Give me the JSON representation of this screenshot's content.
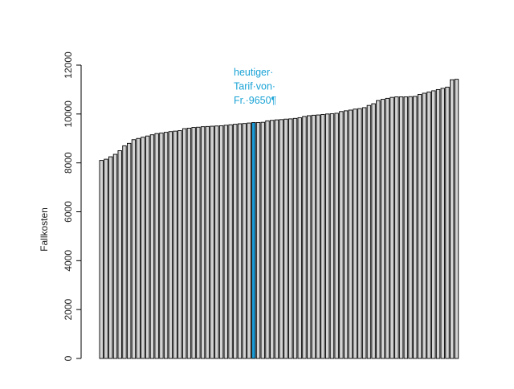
{
  "chart_data": {
    "type": "bar",
    "title": "",
    "xlabel": "",
    "ylabel": "Fallkosten",
    "ylim": [
      0,
      12000
    ],
    "yticks": [
      0,
      2000,
      4000,
      6000,
      8000,
      10000,
      12000
    ],
    "values": [
      8100,
      8150,
      8250,
      8350,
      8500,
      8700,
      8800,
      8950,
      9000,
      9050,
      9100,
      9150,
      9200,
      9220,
      9250,
      9280,
      9300,
      9320,
      9400,
      9420,
      9450,
      9460,
      9480,
      9490,
      9500,
      9510,
      9520,
      9540,
      9560,
      9580,
      9600,
      9610,
      9630,
      9650,
      9650,
      9660,
      9720,
      9740,
      9760,
      9770,
      9790,
      9800,
      9820,
      9850,
      9900,
      9930,
      9950,
      9960,
      9980,
      10000,
      10010,
      10030,
      10100,
      10130,
      10160,
      10200,
      10220,
      10260,
      10350,
      10420,
      10550,
      10600,
      10640,
      10680,
      10700,
      10700,
      10700,
      10710,
      10720,
      10800,
      10850,
      10900,
      10950,
      11000,
      11050,
      11100,
      11400,
      11420
    ],
    "highlight_index": 33,
    "colors": {
      "bar_fill": "#d3d3d3",
      "bar_stroke": "#000000",
      "highlight_fill": "#1a9bd7",
      "annotation": "#1aa3d6"
    },
    "annotation": {
      "lines": [
        "heutiger·",
        "Tarif·von·",
        "Fr.·9650¶"
      ],
      "value": 9650
    },
    "grid": false,
    "legend": "none"
  }
}
